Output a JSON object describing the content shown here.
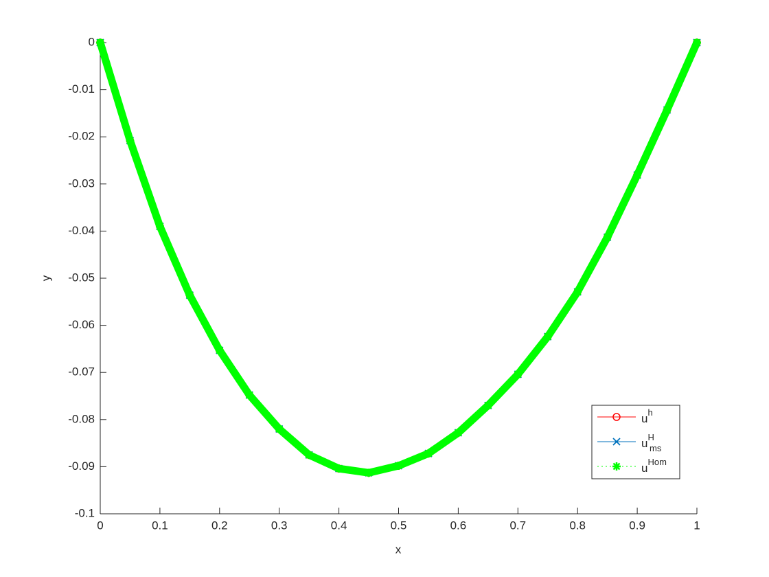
{
  "chart_data": {
    "type": "line",
    "x": [
      0,
      0.05,
      0.1,
      0.15,
      0.2,
      0.25,
      0.3,
      0.35,
      0.4,
      0.45,
      0.5,
      0.55,
      0.6,
      0.65,
      0.7,
      0.75,
      0.8,
      0.85,
      0.9,
      0.95,
      1
    ],
    "xlabel": "x",
    "ylabel": "y",
    "xlim": [
      0,
      1
    ],
    "ylim": [
      -0.1,
      0
    ],
    "xticks": [
      0,
      0.1,
      0.2,
      0.3,
      0.4,
      0.5,
      0.6,
      0.7,
      0.8,
      0.9,
      1
    ],
    "yticks": [
      -0.1,
      -0.09,
      -0.08,
      -0.07,
      -0.06,
      -0.05,
      -0.04,
      -0.03,
      -0.02,
      -0.01,
      0
    ],
    "legend": "lower right",
    "series": [
      {
        "name": "u",
        "sup": "h",
        "color": "#ff0000",
        "marker": "circle",
        "linestyle": "solid",
        "values": [
          0,
          -0.0208,
          -0.039,
          -0.0536,
          -0.0653,
          -0.0748,
          -0.082,
          -0.0875,
          -0.0904,
          -0.0913,
          -0.0898,
          -0.0872,
          -0.0828,
          -0.077,
          -0.0704,
          -0.0624,
          -0.0529,
          -0.0413,
          -0.0281,
          -0.0143,
          0
        ]
      },
      {
        "name": "u",
        "sup": "H",
        "sub": "ms",
        "color": "#0072bd",
        "marker": "x",
        "linestyle": "solid",
        "values": [
          0,
          -0.0208,
          -0.039,
          -0.0536,
          -0.0653,
          -0.0748,
          -0.082,
          -0.0875,
          -0.0904,
          -0.0913,
          -0.0898,
          -0.0872,
          -0.0828,
          -0.077,
          -0.0704,
          -0.0624,
          -0.0529,
          -0.0413,
          -0.0281,
          -0.0143,
          0
        ]
      },
      {
        "name": "u",
        "sup": "Hom",
        "color": "#00ff00",
        "marker": "star",
        "linestyle": "dotted",
        "values": [
          0,
          -0.0208,
          -0.039,
          -0.0536,
          -0.0653,
          -0.0748,
          -0.082,
          -0.0875,
          -0.0904,
          -0.0913,
          -0.0898,
          -0.0872,
          -0.0828,
          -0.077,
          -0.0704,
          -0.0624,
          -0.0529,
          -0.0413,
          -0.0281,
          -0.0143,
          0
        ]
      }
    ]
  }
}
